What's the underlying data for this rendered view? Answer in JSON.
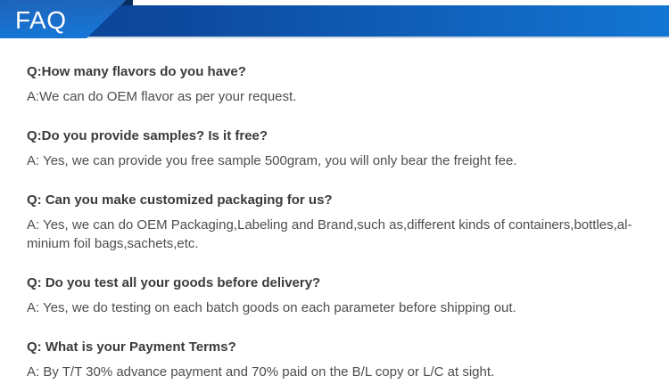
{
  "header": {
    "title": "FAQ"
  },
  "colors": {
    "bar_gradient_left": "#0b4192",
    "bar_gradient_mid": "#0d4a9f",
    "bar_gradient_right": "#1376d3",
    "ribbon_top": "#1e63ba",
    "ribbon_bottom": "#1578d8",
    "ribbon_fold": "#0a2d62",
    "header_underline": "#ccd7e6",
    "title_text": "#ffffff",
    "question_text": "#3b3b3b",
    "answer_text": "#4d4d4d"
  },
  "faq": {
    "items": [
      {
        "question": "Q:How many flavors do you have?",
        "answer": "A:We can do OEM flavor as per your request."
      },
      {
        "question": "Q:Do you provide samples? Is it free?",
        "answer": "A: Yes, we can provide you free sample 500gram, you will only bear the freight fee."
      },
      {
        "question": "Q: Can you make customized packaging for us?",
        "answer": "A: Yes, we can do OEM Packaging,Labeling and Brand,such as,different kinds of containers,bottles,al-minium foil bags,sachets,etc."
      },
      {
        "question": "Q: Do you test all your goods before delivery?",
        "answer": "A: Yes, we do testing on each batch goods on each parameter before shipping out."
      },
      {
        "question": "Q: What is your Payment Terms?",
        "answer": "A: By T/T 30% advance payment and 70% paid on the B/L copy or L/C at sight."
      }
    ]
  }
}
